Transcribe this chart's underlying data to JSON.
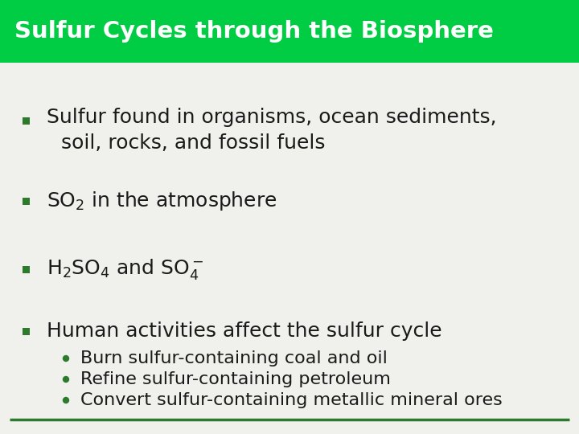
{
  "title": "Sulfur Cycles through the Biosphere",
  "title_bg_color": "#00cc44",
  "title_text_color": "#ffffff",
  "body_bg_color": "#f0f0ec",
  "bullet_color": "#2d7a2d",
  "text_color": "#1a1a1a",
  "bottom_line_color": "#2d7a2d",
  "title_fontsize": 21,
  "body_fontsize": 18,
  "sub_fontsize": 16,
  "sub_bullets": [
    "Burn sulfur-containing coal and oil",
    "Refine sulfur-containing petroleum",
    "Convert sulfur-containing metallic mineral ores"
  ]
}
